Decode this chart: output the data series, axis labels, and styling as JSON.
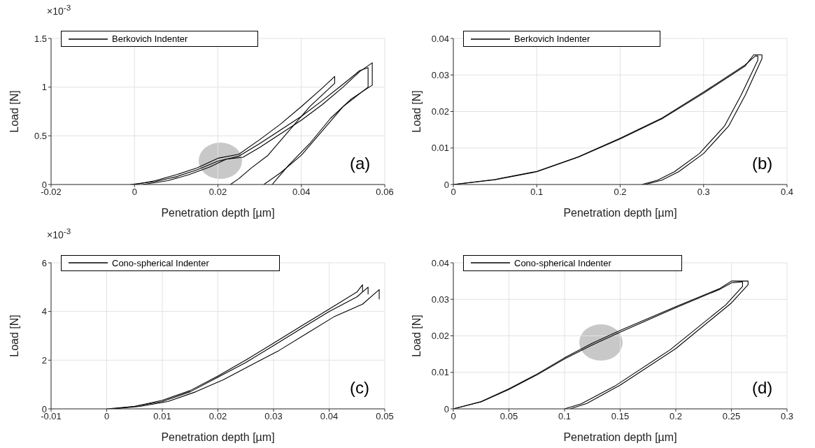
{
  "chart_data": [
    {
      "type": "line",
      "xlabel": "Penetration depth [µm]",
      "ylabel": "Load [N]",
      "legend": "top left",
      "grid": true,
      "xlim": [
        -0.02,
        0.06
      ],
      "xticks": [
        -0.02,
        0,
        0.02,
        0.04,
        0.06
      ],
      "ylim": [
        0,
        1.5
      ],
      "yticks": [
        0,
        0.5,
        1,
        1.5
      ],
      "annotations": [
        "×10$^{-3}$",
        "(a)"
      ],
      "series": [
        {
          "name": "Berkovich Indenter",
          "color": "#000000",
          "x": [
            -0.001,
            0.005,
            0.01,
            0.015,
            0.02,
            0.025,
            0.03,
            0.035,
            0.04,
            0.045,
            0.05,
            0.054,
            0.056,
            0.056,
            0.05,
            0.045,
            0.04,
            0.035,
            0.031
          ],
          "values": [
            0,
            0.03,
            0.08,
            0.15,
            0.24,
            0.29,
            0.42,
            0.56,
            0.7,
            0.86,
            1.03,
            1.17,
            1.2,
            1,
            0.8,
            0.55,
            0.3,
            0.12,
            0
          ]
        },
        {
          "color": "#000000",
          "x": [
            0,
            0.005,
            0.01,
            0.015,
            0.02,
            0.025,
            0.03,
            0.035,
            0.04,
            0.045,
            0.048,
            0.048,
            0.042,
            0.037,
            0.032,
            0.028,
            0.025,
            0.023
          ],
          "values": [
            0,
            0.04,
            0.1,
            0.17,
            0.27,
            0.31,
            0.46,
            0.62,
            0.8,
            0.99,
            1.11,
            1.04,
            0.8,
            0.55,
            0.3,
            0.17,
            0.06,
            0
          ]
        },
        {
          "color": "#000000",
          "x": [
            0.002,
            0.008,
            0.013,
            0.018,
            0.022,
            0.026,
            0.03,
            0.035,
            0.04,
            0.045,
            0.05,
            0.054,
            0.057,
            0.057,
            0.052,
            0.047,
            0.042,
            0.037,
            0.033
          ],
          "values": [
            0,
            0.04,
            0.1,
            0.18,
            0.26,
            0.28,
            0.38,
            0.52,
            0.66,
            0.82,
            1,
            1.16,
            1.25,
            1.02,
            0.88,
            0.68,
            0.42,
            0.2,
            0
          ]
        }
      ]
    },
    {
      "type": "line",
      "xlabel": "Penetration depth [µm]",
      "ylabel": "Load [N]",
      "legend": "top left",
      "grid": true,
      "xlim": [
        0,
        0.4
      ],
      "xticks": [
        0,
        0.1,
        0.2,
        0.3,
        0.4
      ],
      "ylim": [
        0,
        0.04
      ],
      "yticks": [
        0,
        0.01,
        0.02,
        0.03,
        0.04
      ],
      "annotations": [
        "(b)"
      ],
      "series": [
        {
          "name": "Berkovich Indenter",
          "color": "#000000",
          "x": [
            0,
            0.05,
            0.1,
            0.15,
            0.2,
            0.25,
            0.3,
            0.35,
            0.36,
            0.37,
            0.37,
            0.35,
            0.33,
            0.3,
            0.27,
            0.25,
            0.23
          ],
          "values": [
            0,
            0.0013,
            0.0035,
            0.0075,
            0.0125,
            0.018,
            0.025,
            0.0325,
            0.0355,
            0.0355,
            0.0345,
            0.0245,
            0.016,
            0.0085,
            0.0035,
            0.0012,
            0
          ]
        },
        {
          "color": "#000000",
          "x": [
            0,
            0.05,
            0.1,
            0.15,
            0.2,
            0.25,
            0.3,
            0.35,
            0.362,
            0.365,
            0.365,
            0.345,
            0.325,
            0.295,
            0.265,
            0.245,
            0.226
          ],
          "values": [
            0,
            0.0014,
            0.0036,
            0.0076,
            0.0127,
            0.0182,
            0.0253,
            0.0328,
            0.0352,
            0.0352,
            0.034,
            0.0245,
            0.016,
            0.0085,
            0.0035,
            0.0012,
            0
          ]
        }
      ]
    },
    {
      "type": "line",
      "xlabel": "Penetration depth [µm]",
      "ylabel": "Load [N]",
      "legend": "top left",
      "grid": true,
      "xlim": [
        -0.01,
        0.05
      ],
      "xticks": [
        -0.01,
        0,
        0.01,
        0.02,
        0.03,
        0.04,
        0.05
      ],
      "ylim": [
        0,
        6
      ],
      "yticks": [
        0,
        2,
        4,
        6
      ],
      "annotations": [
        "×10$^{-3}$",
        "(c)"
      ],
      "series": [
        {
          "name": "Cono-spherical Indenter",
          "color": "#000000",
          "x": [
            0,
            0.005,
            0.01,
            0.015,
            0.02,
            0.025,
            0.03,
            0.035,
            0.04,
            0.045,
            0.047,
            0.047
          ],
          "values": [
            0,
            0.1,
            0.3,
            0.7,
            1.3,
            1.9,
            2.6,
            3.3,
            4,
            4.6,
            5,
            4.7
          ]
        },
        {
          "color": "#000000",
          "x": [
            0.001,
            0.006,
            0.011,
            0.016,
            0.021,
            0.026,
            0.031,
            0.036,
            0.041,
            0.046,
            0.049,
            0.049
          ],
          "values": [
            0,
            0.1,
            0.3,
            0.7,
            1.2,
            1.8,
            2.4,
            3.1,
            3.8,
            4.3,
            4.9,
            4.5
          ]
        },
        {
          "color": "#000000",
          "x": [
            0.001,
            0.005,
            0.01,
            0.015,
            0.02,
            0.025,
            0.03,
            0.035,
            0.04,
            0.045,
            0.046,
            0.046
          ],
          "values": [
            0,
            0.1,
            0.35,
            0.75,
            1.35,
            2,
            2.7,
            3.4,
            4.1,
            4.8,
            5.1,
            4.8
          ]
        }
      ]
    },
    {
      "type": "line",
      "xlabel": "Penetration depth [µm]",
      "ylabel": "Load [N]",
      "legend": "top left",
      "grid": true,
      "xlim": [
        0,
        0.3
      ],
      "xticks": [
        0,
        0.05,
        0.1,
        0.15,
        0.2,
        0.25,
        0.3
      ],
      "ylim": [
        0,
        0.04
      ],
      "yticks": [
        0,
        0.01,
        0.02,
        0.03,
        0.04
      ],
      "annotations": [
        "(d)"
      ],
      "series": [
        {
          "name": "Cono-spherical Indenter",
          "color": "#000000",
          "x": [
            0,
            0.025,
            0.05,
            0.075,
            0.1,
            0.125,
            0.15,
            0.2,
            0.24,
            0.25,
            0.265,
            0.265,
            0.25,
            0.2,
            0.15,
            0.12,
            0.105
          ],
          "values": [
            0,
            0.002,
            0.0055,
            0.0095,
            0.014,
            0.018,
            0.0215,
            0.028,
            0.033,
            0.035,
            0.035,
            0.034,
            0.029,
            0.0165,
            0.0065,
            0.0015,
            0
          ]
        },
        {
          "color": "#000000",
          "x": [
            0,
            0.025,
            0.05,
            0.075,
            0.1,
            0.125,
            0.15,
            0.2,
            0.24,
            0.25,
            0.26,
            0.26,
            0.245,
            0.195,
            0.145,
            0.115,
            0.1
          ],
          "values": [
            0,
            0.0019,
            0.0053,
            0.0093,
            0.0137,
            0.0175,
            0.021,
            0.0277,
            0.0328,
            0.0345,
            0.0348,
            0.0335,
            0.0285,
            0.0162,
            0.0062,
            0.0014,
            0
          ]
        }
      ]
    }
  ]
}
